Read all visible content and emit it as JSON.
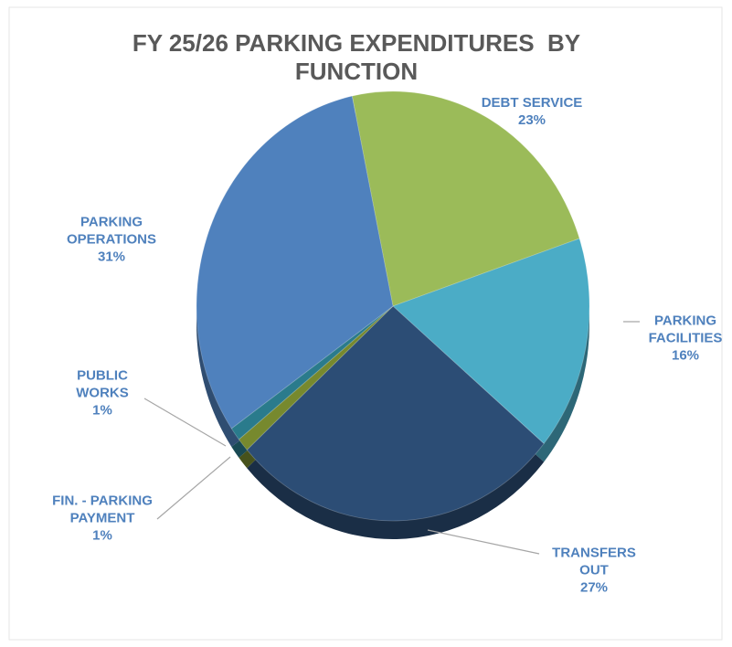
{
  "chart_data": {
    "type": "pie",
    "title": "FY 25/26 PARKING EXPENDITURES  BY FUNCTION",
    "categories": [
      "DEBT SERVICE",
      "PARKING FACILITIES",
      "TRANSFERS OUT",
      "FIN. - PARKING PAYMENT",
      "PUBLIC WORKS",
      "PARKING OPERATIONS"
    ],
    "values": [
      23,
      16,
      27,
      1,
      1,
      31
    ],
    "value_labels": [
      "23%",
      "16%",
      "27%",
      "1%",
      "1%",
      "31%"
    ],
    "colors": [
      "#9bbb59",
      "#4bacc6",
      "#2c4d75",
      "#77892e",
      "#2a7b8c",
      "#4f81bd"
    ]
  }
}
